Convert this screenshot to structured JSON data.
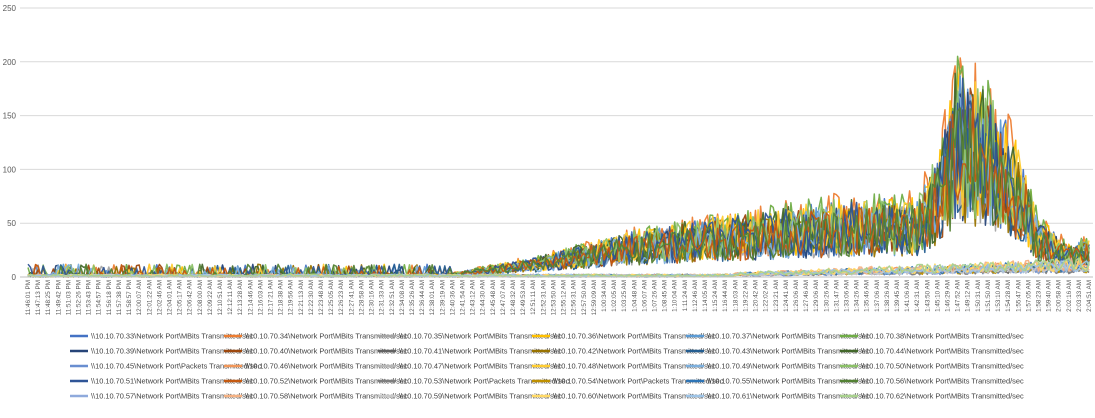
{
  "chart_data": {
    "type": "line",
    "title": "",
    "xlabel": "",
    "ylabel": "",
    "ylim": [
      0,
      250
    ],
    "yticks": [
      0,
      50,
      100,
      150,
      200,
      250
    ],
    "grid": true,
    "legend_position": "bottom",
    "x": [
      "11:46:01 PM",
      "11:47:13 PM",
      "11:48:25 PM",
      "11:49:42 PM",
      "11:51:03 PM",
      "11:52:26 PM",
      "11:53:43 PM",
      "11:54:57 PM",
      "11:56:18 PM",
      "11:57:38 PM",
      "11:58:57 PM",
      "12:00:07 AM",
      "12:01:22 AM",
      "12:02:46 AM",
      "12:04:01 AM",
      "12:05:17 AM",
      "12:06:42 AM",
      "12:08:00 AM",
      "12:09:22 AM",
      "12:10:51 AM",
      "12:12:11 AM",
      "12:13:28 AM",
      "12:14:46 AM",
      "12:16:03 AM",
      "12:17:21 AM",
      "12:18:38 AM",
      "12:19:56 AM",
      "12:21:13 AM",
      "12:22:30 AM",
      "12:23:48 AM",
      "12:25:05 AM",
      "12:26:23 AM",
      "12:27:41 AM",
      "12:28:58 AM",
      "12:30:16 AM",
      "12:31:33 AM",
      "12:32:51 AM",
      "12:34:08 AM",
      "12:35:26 AM",
      "12:36:44 AM",
      "12:38:01 AM",
      "12:39:19 AM",
      "12:40:36 AM",
      "12:41:54 AM",
      "12:43:12 AM",
      "12:44:30 AM",
      "12:45:48 AM",
      "12:47:07 AM",
      "12:48:32 AM",
      "12:49:53 AM",
      "12:51:11 AM",
      "12:52:31 AM",
      "12:53:50 AM",
      "12:55:12 AM",
      "12:56:31 AM",
      "12:57:50 AM",
      "12:59:09 AM",
      "1:00:34 AM",
      "1:02:05 AM",
      "1:03:25 AM",
      "1:04:48 AM",
      "1:06:07 AM",
      "1:07:26 AM",
      "1:08:45 AM",
      "1:10:04 AM",
      "1:11:24 AM",
      "1:12:46 AM",
      "1:14:05 AM",
      "1:15:24 AM",
      "1:16:44 AM",
      "1:18:03 AM",
      "1:19:22 AM",
      "1:20:42 AM",
      "1:22:02 AM",
      "1:23:21 AM",
      "1:24:41 AM",
      "1:26:06 AM",
      "1:27:46 AM",
      "1:29:06 AM",
      "1:30:26 AM",
      "1:31:47 AM",
      "1:33:06 AM",
      "1:34:26 AM",
      "1:35:46 AM",
      "1:37:06 AM",
      "1:38:26 AM",
      "1:39:45 AM",
      "1:41:06 AM",
      "1:42:31 AM",
      "1:43:50 AM",
      "1:45:10 AM",
      "1:46:29 AM",
      "1:47:52 AM",
      "1:49:12 AM",
      "1:50:31 AM",
      "1:51:50 AM",
      "1:53:10 AM",
      "1:54:28 AM",
      "1:55:47 AM",
      "1:57:05 AM",
      "1:58:23 AM",
      "1:59:40 AM",
      "2:00:58 AM",
      "2:02:16 AM",
      "2:03:33 AM",
      "2:04:51 AM"
    ],
    "series": [
      {
        "name": "\\\\10.10.70.33\\Network Port\\MBits Transmitted/sec",
        "color": "#4472C4",
        "profile": "main",
        "scale": 1.0
      },
      {
        "name": "\\\\10.10.70.34\\Network Port\\MBits Transmitted/sec",
        "color": "#ED7D31",
        "profile": "main",
        "scale": 1.1
      },
      {
        "name": "\\\\10.10.70.35\\Network Port\\MBits Transmitted/sec",
        "color": "#A5A5A5",
        "profile": "main",
        "scale": 0.9
      },
      {
        "name": "\\\\10.10.70.36\\Network Port\\MBits Transmitted/sec",
        "color": "#FFC000",
        "profile": "main",
        "scale": 1.0
      },
      {
        "name": "\\\\10.10.70.37\\Network Port\\MBits Transmitted/sec",
        "color": "#5B9BD5",
        "profile": "main",
        "scale": 0.95
      },
      {
        "name": "\\\\10.10.70.38\\Network Port\\MBits Transmitted/sec",
        "color": "#70AD47",
        "profile": "main",
        "scale": 1.05
      },
      {
        "name": "\\\\10.10.70.39\\Network Port\\MBits Transmitted/sec",
        "color": "#264478",
        "profile": "main",
        "scale": 0.9
      },
      {
        "name": "\\\\10.10.70.40\\Network Port\\MBits Transmitted/sec",
        "color": "#9E480E",
        "profile": "main",
        "scale": 0.95
      },
      {
        "name": "\\\\10.10.70.41\\Network Port\\MBits Transmitted/sec",
        "color": "#636363",
        "profile": "low",
        "scale": 0.6
      },
      {
        "name": "\\\\10.10.70.42\\Network Port\\MBits Transmitted/sec",
        "color": "#997300",
        "profile": "main",
        "scale": 0.9
      },
      {
        "name": "\\\\10.10.70.43\\Network Port\\MBits Transmitted/sec",
        "color": "#255E91",
        "profile": "main",
        "scale": 0.85
      },
      {
        "name": "\\\\10.10.70.44\\Network Port\\MBits Transmitted/sec",
        "color": "#43682B",
        "profile": "main",
        "scale": 1.0
      },
      {
        "name": "\\\\10.10.70.45\\Network Port\\Packets Transmitted/sec",
        "color": "#698ED0",
        "profile": "low",
        "scale": 0.5
      },
      {
        "name": "\\\\10.10.70.46\\Network Port\\MBits Transmitted/sec",
        "color": "#F1975A",
        "profile": "low",
        "scale": 0.7
      },
      {
        "name": "\\\\10.10.70.47\\Network Port\\MBits Transmitted/sec",
        "color": "#B7B7B7",
        "profile": "low",
        "scale": 0.6
      },
      {
        "name": "\\\\10.10.70.48\\Network Port\\MBits Transmitted/sec",
        "color": "#FFCD33",
        "profile": "main",
        "scale": 1.0
      },
      {
        "name": "\\\\10.10.70.49\\Network Port\\MBits Transmitted/sec",
        "color": "#7CAFDD",
        "profile": "main",
        "scale": 0.9
      },
      {
        "name": "\\\\10.10.70.50\\Network Port\\MBits Transmitted/sec",
        "color": "#8CC168",
        "profile": "main",
        "scale": 1.0
      },
      {
        "name": "\\\\10.10.70.51\\Network Port\\MBits Transmitted/sec",
        "color": "#2F5597",
        "profile": "main",
        "scale": 0.95
      },
      {
        "name": "\\\\10.10.70.52\\Network Port\\MBits Transmitted/sec",
        "color": "#C55A11",
        "profile": "main",
        "scale": 0.9
      },
      {
        "name": "\\\\10.10.70.53\\Network Port\\Packets Transmitted/sec",
        "color": "#7F7F7F",
        "profile": "low",
        "scale": 0.5
      },
      {
        "name": "\\\\10.10.70.54\\Network Port\\Packets Transmitted/sec",
        "color": "#BF9000",
        "profile": "low",
        "scale": 0.6
      },
      {
        "name": "\\\\10.10.70.55\\Network Port\\MBits Transmitted/sec",
        "color": "#2E75B6",
        "profile": "low",
        "scale": 0.7
      },
      {
        "name": "\\\\10.10.70.56\\Network Port\\MBits Transmitted/sec",
        "color": "#548235",
        "profile": "main",
        "scale": 0.9
      },
      {
        "name": "\\\\10.10.70.57\\Network Port\\MBits Transmitted/sec",
        "color": "#8FAADC",
        "profile": "low",
        "scale": 0.6
      },
      {
        "name": "\\\\10.10.70.58\\Network Port\\MBits Transmitted/sec",
        "color": "#F4B183",
        "profile": "low",
        "scale": 0.8
      },
      {
        "name": "\\\\10.10.70.59\\Network Port\\MBits Transmitted/sec",
        "color": "#C9C9C9",
        "profile": "low",
        "scale": 0.6
      },
      {
        "name": "\\\\10.10.70.60\\Network Port\\MBits Transmitted/sec",
        "color": "#FFD966",
        "profile": "low",
        "scale": 0.8
      },
      {
        "name": "\\\\10.10.70.61\\Network Port\\MBits Transmitted/sec",
        "color": "#9DC3E6",
        "profile": "low",
        "scale": 0.7
      },
      {
        "name": "\\\\10.10.70.62\\Network Port\\MBits Transmitted/sec",
        "color": "#A9D18E",
        "profile": "low",
        "scale": 0.8
      }
    ],
    "envelope": {
      "x": [
        0,
        40,
        42,
        50,
        60,
        70,
        80,
        88,
        90,
        92,
        95,
        98,
        100,
        103,
        105
      ],
      "y": [
        6,
        5,
        3,
        15,
        35,
        48,
        58,
        60,
        95,
        160,
        140,
        100,
        45,
        25,
        30
      ]
    }
  }
}
